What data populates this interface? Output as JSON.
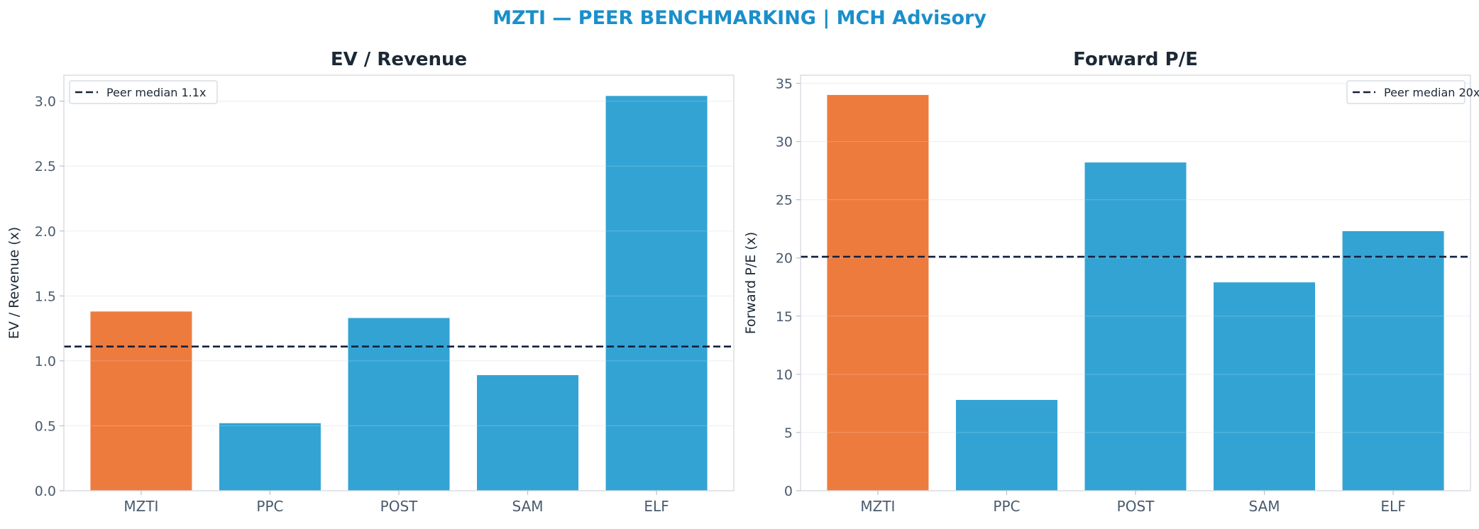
{
  "figure": {
    "suptitle": "MZTI — PEER BENCHMARKING | MCH Advisory"
  },
  "colors": {
    "title": "#1a8fcb",
    "highlight": "#ed7b3e",
    "peer": "#33a3d4",
    "median_line": "#14213d",
    "axis_text": "#4a5a6e",
    "panel_title": "#1b2836"
  },
  "chart_data": [
    {
      "type": "bar",
      "title": "EV / Revenue",
      "ylabel": "EV / Revenue (x)",
      "categories": [
        "MZTI",
        "PPC",
        "POST",
        "SAM",
        "ELF"
      ],
      "values": [
        1.38,
        0.52,
        1.33,
        0.89,
        3.04
      ],
      "highlight": "MZTI",
      "ylim": [
        0,
        3.2
      ],
      "yticks": [
        0.0,
        0.5,
        1.0,
        1.5,
        2.0,
        2.5,
        3.0
      ],
      "ytick_labels": [
        "0.0",
        "0.5",
        "1.0",
        "1.5",
        "2.0",
        "2.5",
        "3.0"
      ],
      "reference_line": {
        "value": 1.11,
        "label": "Peer median 1.1x"
      },
      "legend_position": "top-left",
      "grid": "horizontal"
    },
    {
      "type": "bar",
      "title": "Forward P/E",
      "ylabel": "Forward P/E (x)",
      "categories": [
        "MZTI",
        "PPC",
        "POST",
        "SAM",
        "ELF"
      ],
      "values": [
        34.0,
        7.8,
        28.2,
        17.9,
        22.3
      ],
      "highlight": "MZTI",
      "ylim": [
        0,
        35.7
      ],
      "yticks": [
        0,
        5,
        10,
        15,
        20,
        25,
        30,
        35
      ],
      "ytick_labels": [
        "0",
        "5",
        "10",
        "15",
        "20",
        "25",
        "30",
        "35"
      ],
      "reference_line": {
        "value": 20.1,
        "label": "Peer median 20x"
      },
      "legend_position": "top-right",
      "grid": "horizontal"
    }
  ]
}
